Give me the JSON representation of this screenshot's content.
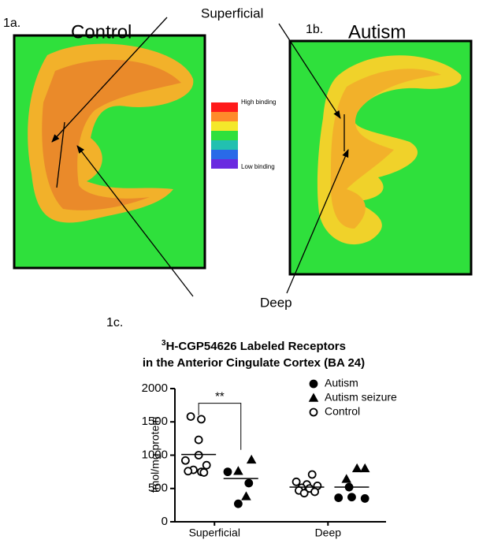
{
  "figure": {
    "panel_a_label": "1a.",
    "panel_a_title": "Control",
    "panel_b_label": "1b.",
    "panel_b_title": "Autism",
    "superficial": "Superficial",
    "deep": "Deep",
    "high_binding": "High binding",
    "low_binding": "Low binding",
    "panel_c_label": "1c."
  },
  "chart_data": {
    "type": "scatter",
    "title_superscript": "3",
    "title": "H-CGP54626 Labeled Receptors",
    "subtitle": "in the Anterior Cingulate Cortex (BA 24)",
    "y_label": "fmol/mg protein",
    "xlim": [
      0,
      4
    ],
    "xticks": [
      {
        "value": 0.75,
        "label": "Superficial"
      },
      {
        "value": 2.9,
        "label": "Deep"
      }
    ],
    "ylim": [
      0,
      2000
    ],
    "yticks": [
      0,
      500,
      1000,
      1500,
      2000
    ],
    "series": [
      {
        "name": "Autism",
        "marker": "circle",
        "filled": true,
        "color": "#000000",
        "x": [
          1.0,
          1.4,
          1.2,
          3.3,
          3.1,
          3.35,
          3.6
        ],
        "values": [
          750,
          580,
          270,
          520,
          360,
          370,
          350
        ]
      },
      {
        "name": "Autism seizure",
        "marker": "triangle",
        "filled": true,
        "color": "#000000",
        "x": [
          1.45,
          1.2,
          1.35,
          3.6,
          3.45,
          3.25
        ],
        "values": [
          930,
          760,
          380,
          800,
          800,
          640
        ]
      },
      {
        "name": "Control",
        "marker": "circle",
        "filled": false,
        "color": "#000000",
        "x": [
          0.3,
          0.5,
          0.45,
          0.45,
          0.2,
          0.6,
          0.35,
          0.25,
          0.5,
          0.55,
          2.6,
          2.3,
          2.5,
          2.7,
          2.4,
          2.55,
          2.35,
          2.65,
          2.45
        ],
        "values": [
          1580,
          1540,
          1230,
          1000,
          920,
          850,
          780,
          760,
          750,
          740,
          710,
          600,
          560,
          540,
          510,
          500,
          470,
          450,
          430
        ]
      }
    ],
    "means": {
      "x": [
        0.45,
        1.25,
        2.5,
        3.35
      ],
      "values": [
        1010,
        650,
        520,
        520
      ]
    },
    "annotation": "**"
  }
}
